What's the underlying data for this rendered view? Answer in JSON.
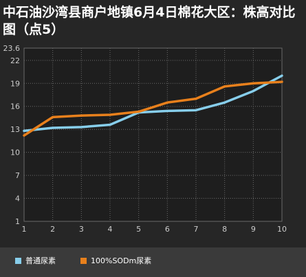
{
  "chart_data": {
    "type": "line",
    "title": "中石油沙湾县商户地镇6月4日棉花大区：株高对比图（点5）",
    "x": [
      1,
      2,
      3,
      4,
      5,
      6,
      7,
      8,
      9,
      10
    ],
    "y_ticks": [
      1,
      4,
      7,
      10,
      13,
      16,
      19,
      22,
      23.6
    ],
    "ylim": [
      1,
      23.6
    ],
    "xlim": [
      1,
      10
    ],
    "grid": true,
    "legend_position": "bottom-left",
    "series": [
      {
        "name": "普通尿素",
        "color": "#87ceeb",
        "values": [
          12.8,
          13.2,
          13.3,
          13.6,
          15.2,
          15.4,
          15.5,
          16.5,
          18.0,
          20.0
        ]
      },
      {
        "name": "100%SODm尿素",
        "color": "#e8801c",
        "values": [
          12.2,
          14.6,
          14.8,
          14.9,
          15.3,
          16.5,
          17.0,
          18.6,
          19.0,
          19.2
        ]
      }
    ]
  }
}
